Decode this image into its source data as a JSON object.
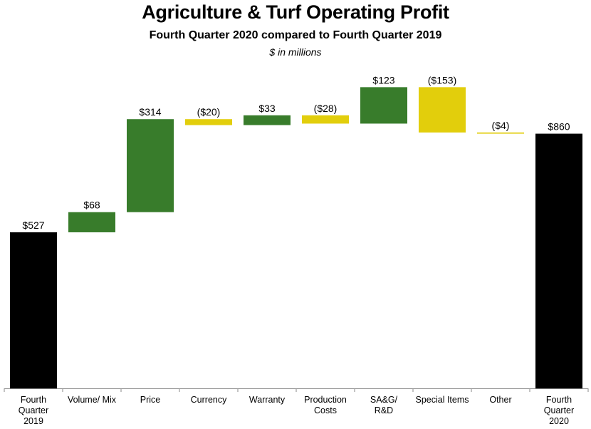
{
  "title": "Agriculture & Turf Operating Profit",
  "subtitle": "Fourth Quarter 2020 compared to Fourth Quarter 2019",
  "units": "$ in millions",
  "colors": {
    "total": "#000000",
    "increase": "#387C2B",
    "decrease": "#E2CE0C"
  },
  "chart_data": {
    "type": "bar",
    "subtype": "waterfall",
    "title": "Agriculture & Turf Operating Profit",
    "subtitle": "Fourth Quarter 2020 compared to Fourth Quarter 2019",
    "ylabel": "$ in millions",
    "xlabel": "",
    "ylim": [
      0,
      1000
    ],
    "grid": false,
    "legend": "none",
    "categories": [
      [
        "Fourth",
        "Quarter",
        "2019"
      ],
      [
        "Volume/ Mix"
      ],
      [
        "Price"
      ],
      [
        "Currency"
      ],
      [
        "Warranty"
      ],
      [
        "Production",
        "Costs"
      ],
      [
        "SA&G/",
        "R&D"
      ],
      [
        "Special Items"
      ],
      [
        "Other"
      ],
      [
        "Fourth",
        "Quarter",
        "2020"
      ]
    ],
    "kinds": [
      "total",
      "delta",
      "delta",
      "delta",
      "delta",
      "delta",
      "delta",
      "delta",
      "delta",
      "total"
    ],
    "values": [
      527,
      68,
      314,
      -20,
      33,
      -28,
      123,
      -153,
      -4,
      860
    ],
    "data_labels": [
      "$527",
      "$68",
      "$314",
      "($20)",
      "$33",
      "($28)",
      "$123",
      "($153)",
      "($4)",
      "$860"
    ]
  }
}
